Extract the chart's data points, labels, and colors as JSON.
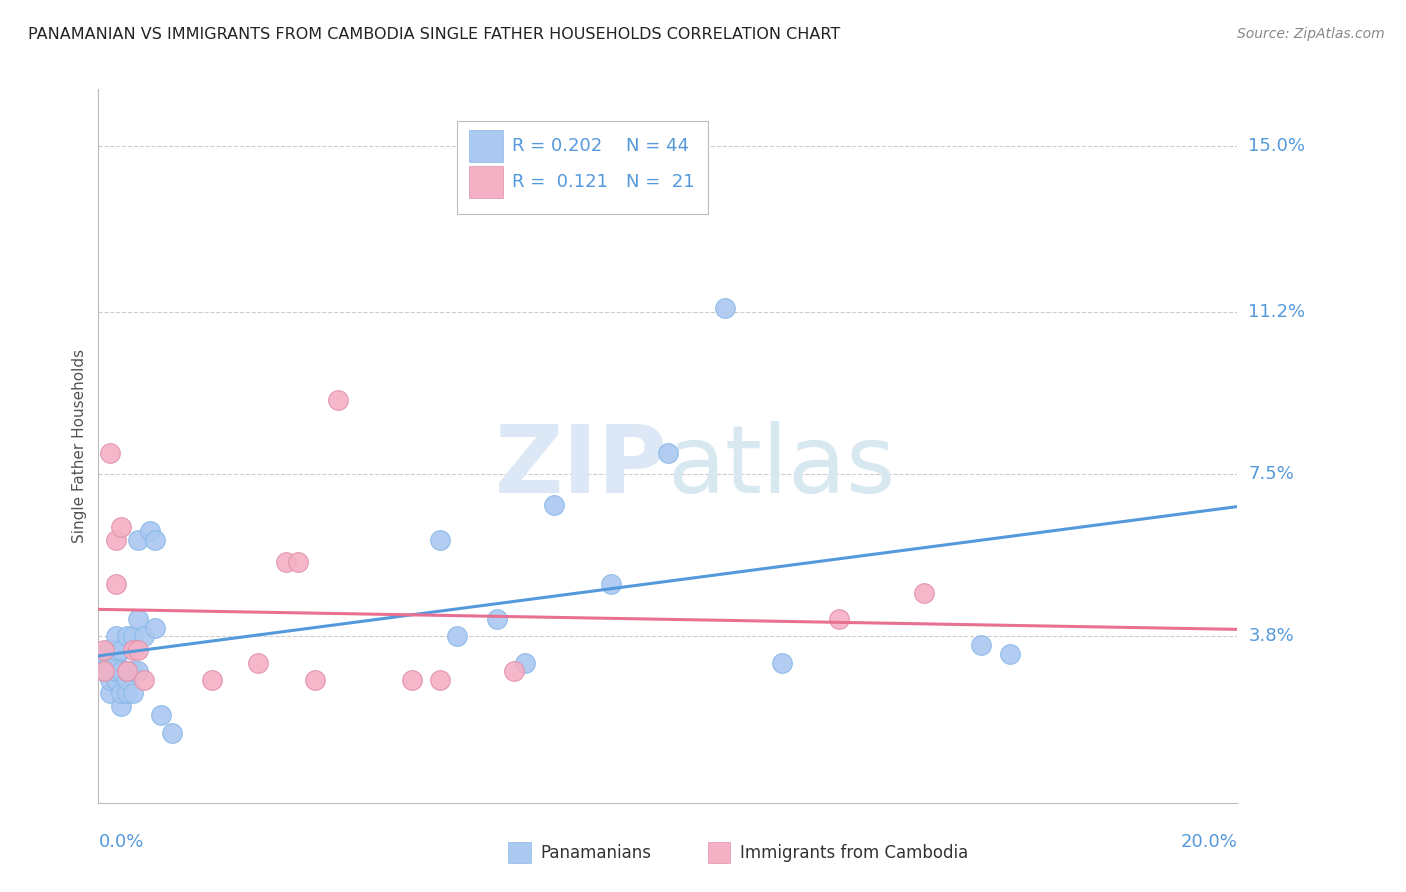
{
  "title": "PANAMANIAN VS IMMIGRANTS FROM CAMBODIA SINGLE FATHER HOUSEHOLDS CORRELATION CHART",
  "source": "Source: ZipAtlas.com",
  "ylabel": "Single Father Households",
  "xlim": [
    0.0,
    0.2
  ],
  "ylim": [
    0.0,
    0.16
  ],
  "ytick_vals": [
    0.038,
    0.075,
    0.112,
    0.15
  ],
  "ytick_labels": [
    "3.8%",
    "7.5%",
    "11.2%",
    "15.0%"
  ],
  "watermark_zip": "ZIP",
  "watermark_atlas": "atlas",
  "panamanian_color": "#aac8f0",
  "cambodia_color": "#f4b0c4",
  "line_color_pan": "#5599dd",
  "line_color_cam": "#e87090",
  "background_color": "#ffffff",
  "grid_color": "#cccccc",
  "pan_x": [
    0.001,
    0.001,
    0.001,
    0.002,
    0.002,
    0.002,
    0.002,
    0.002,
    0.003,
    0.003,
    0.003,
    0.003,
    0.003,
    0.004,
    0.004,
    0.004,
    0.004,
    0.005,
    0.005,
    0.005,
    0.005,
    0.006,
    0.006,
    0.006,
    0.007,
    0.007,
    0.007,
    0.008,
    0.009,
    0.01,
    0.01,
    0.011,
    0.013,
    0.06,
    0.063,
    0.07,
    0.075,
    0.08,
    0.09,
    0.1,
    0.11,
    0.12,
    0.155,
    0.16
  ],
  "pan_y": [
    0.03,
    0.032,
    0.034,
    0.025,
    0.028,
    0.03,
    0.032,
    0.035,
    0.028,
    0.03,
    0.033,
    0.035,
    0.038,
    0.022,
    0.025,
    0.03,
    0.035,
    0.025,
    0.028,
    0.03,
    0.038,
    0.025,
    0.03,
    0.038,
    0.03,
    0.042,
    0.06,
    0.038,
    0.062,
    0.04,
    0.06,
    0.02,
    0.016,
    0.06,
    0.038,
    0.042,
    0.032,
    0.068,
    0.05,
    0.08,
    0.113,
    0.032,
    0.036,
    0.034
  ],
  "cam_x": [
    0.001,
    0.001,
    0.002,
    0.003,
    0.003,
    0.004,
    0.005,
    0.006,
    0.007,
    0.008,
    0.02,
    0.028,
    0.033,
    0.035,
    0.038,
    0.042,
    0.055,
    0.06,
    0.073,
    0.13,
    0.145
  ],
  "cam_y": [
    0.03,
    0.035,
    0.08,
    0.05,
    0.06,
    0.063,
    0.03,
    0.035,
    0.035,
    0.028,
    0.028,
    0.032,
    0.055,
    0.055,
    0.028,
    0.092,
    0.028,
    0.028,
    0.03,
    0.042,
    0.048
  ]
}
